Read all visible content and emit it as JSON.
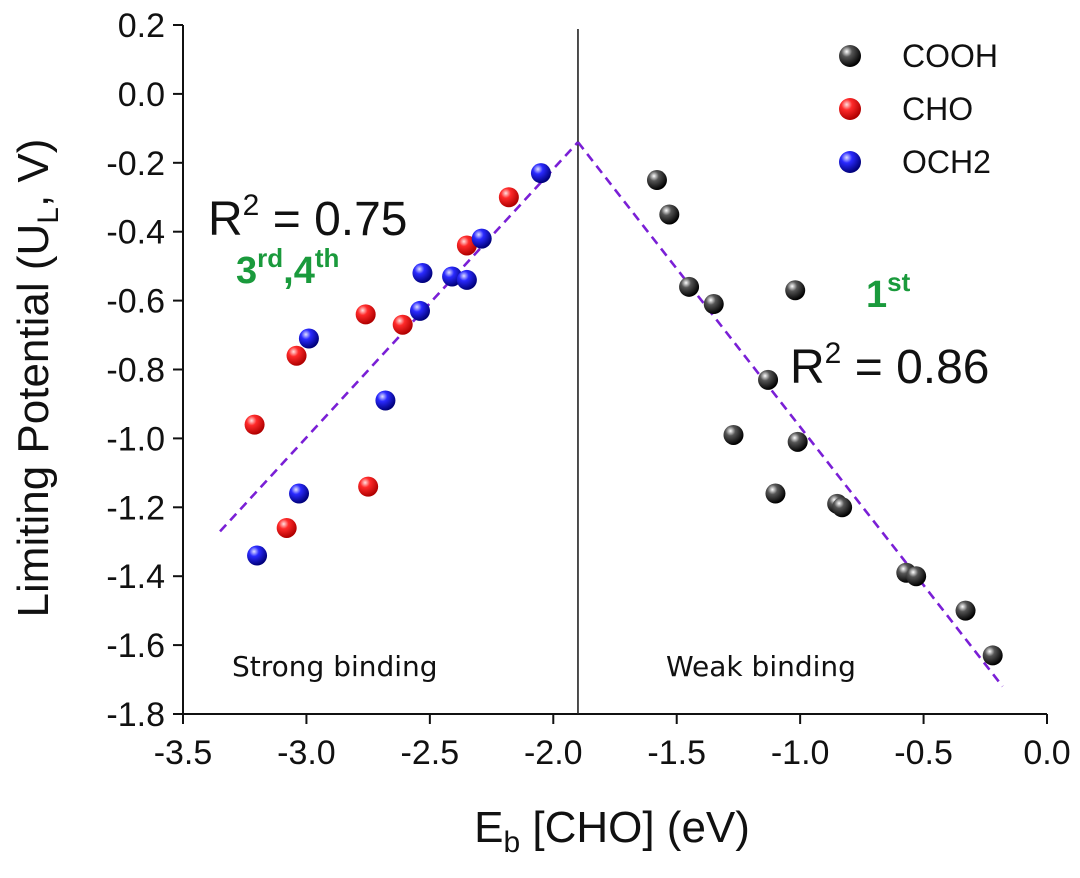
{
  "chart_data": {
    "type": "scatter",
    "xlabel": {
      "main": "E",
      "sub": "b",
      "rest": " [CHO] (eV)"
    },
    "ylabel": {
      "main": "Limiting Potential (U",
      "sub": "L",
      "rest": ", V)"
    },
    "xlim": [
      -3.5,
      0.0
    ],
    "ylim": [
      -1.8,
      0.2
    ],
    "xticks": [
      -3.5,
      -3.0,
      -2.5,
      -2.0,
      -1.5,
      -1.0,
      -0.5,
      0.0
    ],
    "xtick_labels": [
      "-3.5",
      "-3.0",
      "-2.5",
      "-2.0",
      "-1.5",
      "-1.0",
      "-0.5",
      "0.0"
    ],
    "yticks": [
      0.2,
      0.0,
      -0.2,
      -0.4,
      -0.6,
      -0.8,
      -1.0,
      -1.2,
      -1.4,
      -1.6,
      -1.8
    ],
    "ytick_labels": [
      "0.2",
      "0.0",
      "-0.2",
      "-0.4",
      "-0.6",
      "-0.8",
      "-1.0",
      "-1.2",
      "-1.4",
      "-1.6",
      "-1.8"
    ],
    "legend_position": "top-right",
    "series": [
      {
        "name": "COOH",
        "color": "#1a1a1a",
        "points": [
          [
            -1.58,
            -0.25
          ],
          [
            -1.53,
            -0.35
          ],
          [
            -1.45,
            -0.56
          ],
          [
            -1.35,
            -0.61
          ],
          [
            -1.02,
            -0.57
          ],
          [
            -1.13,
            -0.83
          ],
          [
            -1.27,
            -0.99
          ],
          [
            -1.01,
            -1.01
          ],
          [
            -1.1,
            -1.16
          ],
          [
            -0.85,
            -1.19
          ],
          [
            -0.83,
            -1.2
          ],
          [
            -0.57,
            -1.39
          ],
          [
            -0.53,
            -1.4
          ],
          [
            -0.33,
            -1.5
          ],
          [
            -0.22,
            -1.63
          ]
        ]
      },
      {
        "name": "CHO",
        "color": "#ee1111",
        "points": [
          [
            -2.18,
            -0.3
          ],
          [
            -2.35,
            -0.44
          ],
          [
            -2.61,
            -0.67
          ],
          [
            -2.76,
            -0.64
          ],
          [
            -3.04,
            -0.76
          ],
          [
            -3.21,
            -0.96
          ],
          [
            -2.75,
            -1.14
          ],
          [
            -3.08,
            -1.26
          ]
        ]
      },
      {
        "name": "OCH2",
        "color": "#1a1ad0",
        "points": [
          [
            -2.05,
            -0.23
          ],
          [
            -2.29,
            -0.42
          ],
          [
            -2.41,
            -0.53
          ],
          [
            -2.35,
            -0.54
          ],
          [
            -2.53,
            -0.52
          ],
          [
            -2.54,
            -0.63
          ],
          [
            -2.99,
            -0.71
          ],
          [
            -2.68,
            -0.89
          ],
          [
            -3.03,
            -1.16
          ],
          [
            -3.2,
            -1.34
          ]
        ]
      }
    ],
    "divider_x": -1.9,
    "fit_lines": [
      {
        "name": "left-fit",
        "from": [
          -3.35,
          -1.27
        ],
        "to": [
          -1.9,
          -0.14
        ],
        "color": "#7a1fd6"
      },
      {
        "name": "right-fit",
        "from": [
          -1.9,
          -0.14
        ],
        "to": [
          -0.18,
          -1.72
        ],
        "color": "#7a1fd6"
      }
    ],
    "annotations": {
      "left_r2": {
        "base": "R",
        "sup": "2",
        "rest": " = 0.75"
      },
      "right_r2": {
        "base": "R",
        "sup": "2",
        "rest": " = 0.86"
      },
      "left_order": {
        "a": "3",
        "a_sup": "rd",
        "sep": ",",
        "b": "4",
        "b_sup": "th"
      },
      "right_order": {
        "a": "1",
        "a_sup": "st"
      },
      "left_region": "Strong binding",
      "right_region": "Weak binding"
    }
  }
}
